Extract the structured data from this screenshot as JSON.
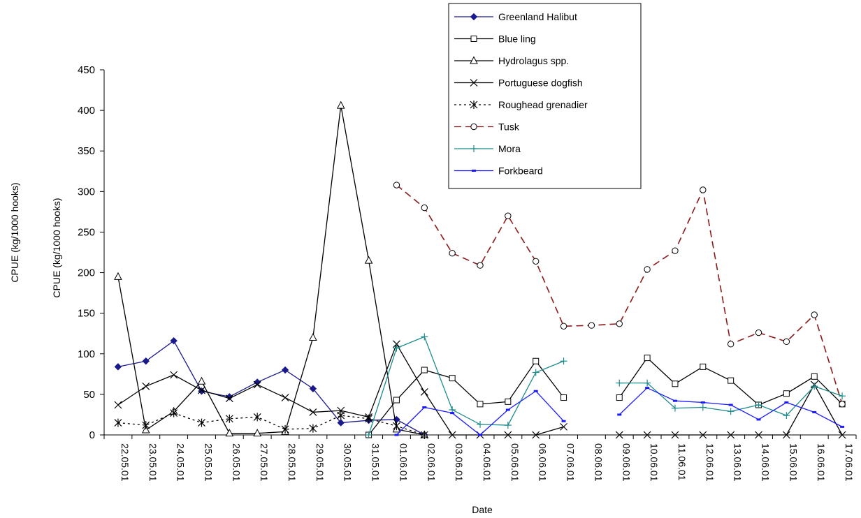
{
  "chart_data": {
    "type": "line",
    "title": "",
    "xlabel": "Date",
    "ylabel": "CPUE (kg/1000 hooks)",
    "outer_ylabel": "CPUE (kg/1000 hooks)",
    "ylim": [
      0,
      450
    ],
    "yticks": [
      0,
      50,
      100,
      150,
      200,
      250,
      300,
      350,
      400,
      450
    ],
    "grid": false,
    "legend_position": "top-right",
    "categories": [
      "22.05.01",
      "23.05.01",
      "24.05.01",
      "25.05.01",
      "26.05.01",
      "27.05.01",
      "28.05.01",
      "29.05.01",
      "30.05.01",
      "31.05.01",
      "01.06.01",
      "02.06.01",
      "03.06.01",
      "04.06.01",
      "05.06.01",
      "06.06.01",
      "07.06.01",
      "08.06.01",
      "09.06.01",
      "10.06.01",
      "11.06.01",
      "12.06.01",
      "13.06.01",
      "14.06.01",
      "15.06.01",
      "16.06.01",
      "17.06.01"
    ],
    "series": [
      {
        "name": "Greenland Halibut",
        "color": "#1a1a8c",
        "dash": "",
        "marker": "diamond-filled",
        "values": [
          84,
          91,
          116,
          54,
          47,
          65,
          80,
          57,
          15,
          18,
          19,
          0,
          null,
          null,
          null,
          null,
          null,
          null,
          null,
          null,
          null,
          null,
          null,
          null,
          null,
          null,
          null
        ]
      },
      {
        "name": "Blue ling",
        "color": "#000000",
        "dash": "",
        "marker": "square-open",
        "values": [
          null,
          null,
          null,
          null,
          null,
          null,
          null,
          null,
          null,
          0,
          43,
          80,
          70,
          38,
          41,
          91,
          46,
          null,
          46,
          95,
          63,
          84,
          67,
          37,
          51,
          72,
          38
        ]
      },
      {
        "name": "Hydrolagus spp.",
        "color": "#000000",
        "dash": "",
        "marker": "triangle-open",
        "values": [
          195,
          6,
          29,
          66,
          2,
          2,
          4,
          120,
          406,
          215,
          7,
          0,
          null,
          null,
          null,
          null,
          null,
          null,
          null,
          null,
          null,
          null,
          null,
          null,
          null,
          null,
          null
        ]
      },
      {
        "name": "Portuguese dogfish",
        "color": "#000000",
        "dash": "",
        "marker": "x",
        "values": [
          37,
          60,
          74,
          55,
          45,
          62,
          46,
          28,
          30,
          22,
          112,
          53,
          0,
          0,
          0,
          0,
          10,
          null,
          0,
          0,
          0,
          0,
          0,
          0,
          0,
          62,
          0
        ]
      },
      {
        "name": "Roughead grenadier",
        "color": "#000000",
        "dash": "3,4",
        "marker": "star",
        "values": [
          15,
          12,
          27,
          15,
          20,
          22,
          7,
          8,
          24,
          20,
          11,
          0,
          null,
          null,
          null,
          null,
          null,
          null,
          null,
          null,
          null,
          null,
          null,
          null,
          null,
          null,
          null
        ]
      },
      {
        "name": "Tusk",
        "color": "#8b1a1a",
        "dash": "10,6",
        "marker": "circle-open",
        "values": [
          null,
          null,
          null,
          null,
          null,
          null,
          null,
          null,
          null,
          null,
          308,
          280,
          224,
          209,
          270,
          214,
          134,
          135,
          137,
          204,
          227,
          302,
          112,
          126,
          115,
          148,
          38
        ]
      },
      {
        "name": "Mora",
        "color": "#1e8b8b",
        "dash": "",
        "marker": "plus",
        "values": [
          null,
          null,
          null,
          null,
          null,
          null,
          null,
          null,
          null,
          0,
          107,
          121,
          31,
          13,
          12,
          77,
          91,
          null,
          64,
          64,
          33,
          34,
          29,
          37,
          24,
          60,
          48
        ]
      },
      {
        "name": "Forkbeard",
        "color": "#1a1aff",
        "dash": "",
        "marker": "dash",
        "values": [
          null,
          null,
          null,
          null,
          null,
          null,
          null,
          null,
          null,
          null,
          0,
          34,
          27,
          0,
          31,
          54,
          17,
          null,
          25,
          58,
          42,
          40,
          37,
          19,
          40,
          28,
          10
        ]
      }
    ]
  }
}
